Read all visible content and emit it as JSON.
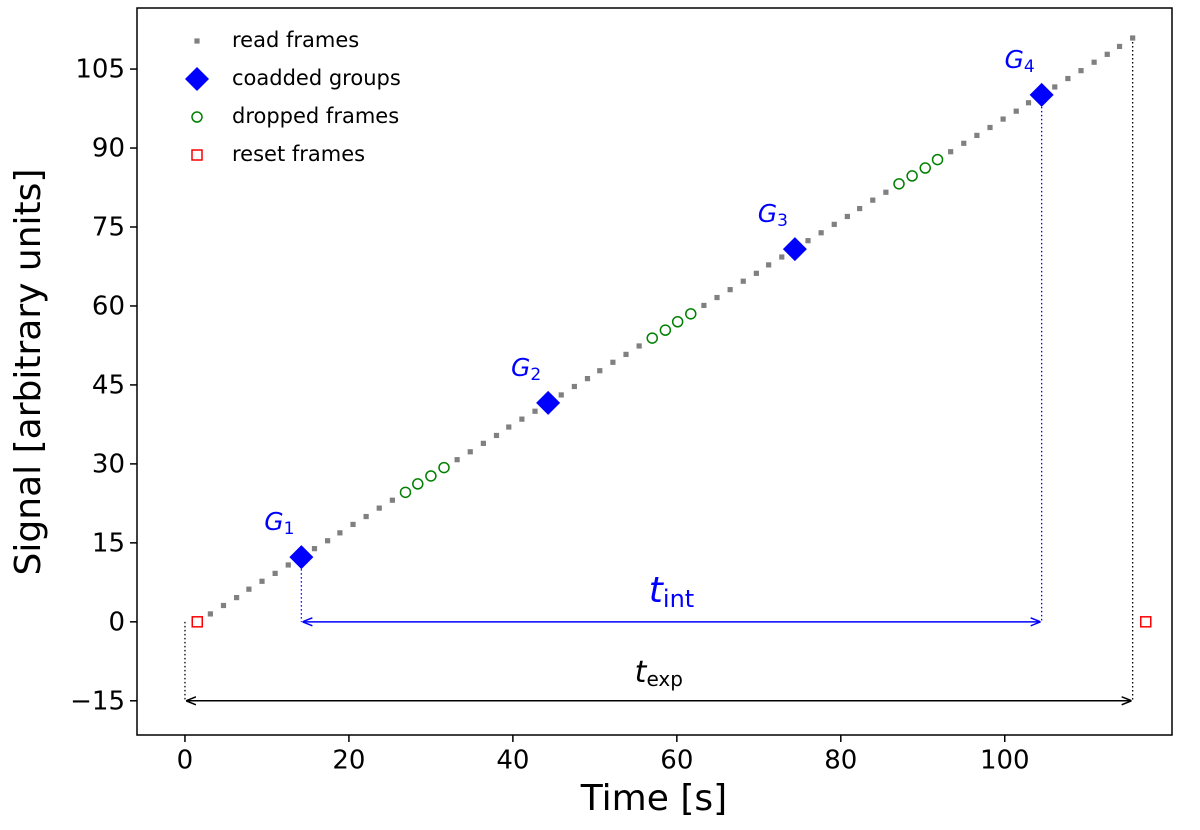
{
  "chart_data": {
    "type": "scatter",
    "xlabel": "Time [s]",
    "ylabel": "Signal [arbitrary units]",
    "xlim": [
      -5.85,
      120.4
    ],
    "ylim": [
      -21.5,
      116.6
    ],
    "xticks": [
      0,
      20,
      40,
      60,
      80,
      100
    ],
    "yticks": [
      {
        "value": -15,
        "label": "−15"
      },
      0,
      15,
      30,
      45,
      60,
      75,
      90,
      105
    ],
    "grid": false,
    "legend": "upper left",
    "series": [
      {
        "name": "read frames",
        "color": "#808080",
        "marker": "dot",
        "x": [
          3.1,
          4.7,
          6.3,
          7.8,
          9.4,
          11.0,
          12.6,
          14.2,
          15.8,
          17.4,
          18.9,
          20.5,
          22.1,
          23.7,
          25.3,
          33.2,
          34.8,
          36.4,
          38.0,
          39.5,
          41.1,
          42.7,
          44.3,
          45.9,
          47.5,
          49.1,
          50.6,
          52.2,
          53.8,
          55.4,
          63.3,
          64.9,
          66.5,
          68.1,
          69.7,
          71.2,
          72.8,
          74.4,
          76.0,
          77.6,
          79.2,
          80.8,
          82.3,
          83.9,
          85.5,
          93.4,
          95.0,
          96.6,
          98.2,
          99.8,
          101.4,
          102.9,
          104.5,
          106.1,
          107.7,
          109.3,
          110.9,
          112.5,
          114.0,
          115.6
        ],
        "y": [
          1.5,
          3.1,
          4.6,
          6.2,
          7.7,
          9.2,
          10.8,
          12.3,
          13.9,
          15.4,
          16.9,
          18.5,
          20.0,
          21.6,
          23.1,
          30.8,
          32.3,
          33.9,
          35.4,
          37.0,
          38.5,
          40.0,
          41.6,
          43.1,
          44.7,
          46.2,
          47.7,
          49.3,
          50.8,
          52.4,
          60.1,
          61.6,
          63.1,
          64.7,
          66.2,
          67.8,
          69.3,
          70.8,
          72.4,
          73.9,
          75.5,
          77.0,
          78.5,
          80.1,
          81.6,
          89.3,
          90.9,
          92.4,
          93.9,
          95.5,
          97.0,
          98.6,
          100.1,
          101.6,
          103.2,
          104.7,
          106.3,
          107.8,
          109.3,
          110.9
        ]
      },
      {
        "name": "coadded groups",
        "color": "#0000ff",
        "marker": "diamond",
        "x": [
          14.2,
          44.3,
          74.4,
          104.5
        ],
        "y": [
          12.3,
          41.6,
          70.8,
          100.1
        ],
        "point_labels": [
          {
            "text": "G",
            "sub": "1"
          },
          {
            "text": "G",
            "sub": "2"
          },
          {
            "text": "G",
            "sub": "3"
          },
          {
            "text": "G",
            "sub": "4"
          }
        ]
      },
      {
        "name": "dropped frames",
        "color": "#008000",
        "marker": "circle",
        "x": [
          26.9,
          28.4,
          30.0,
          31.6,
          57.0,
          58.6,
          60.1,
          61.7,
          87.1,
          88.7,
          90.3,
          91.8
        ],
        "y": [
          24.6,
          26.2,
          27.7,
          29.3,
          53.9,
          55.4,
          57.0,
          58.5,
          83.2,
          84.7,
          86.2,
          87.8
        ]
      },
      {
        "name": "reset frames",
        "color": "#ff0000",
        "marker": "square",
        "x": [
          1.5,
          117.2
        ],
        "y": [
          0,
          0
        ]
      }
    ],
    "spans": [
      {
        "label": {
          "text": "t",
          "sub": "int"
        },
        "color": "#0000ff",
        "from": 14.2,
        "to": 104.5,
        "y": 0,
        "guide_tops": [
          12.3,
          100.1
        ]
      },
      {
        "label": {
          "text": "t",
          "sub": "exp"
        },
        "color": "#000000",
        "from": 0,
        "to": 115.6,
        "y": -15,
        "guide_tops": [
          0,
          110.9
        ]
      }
    ]
  }
}
